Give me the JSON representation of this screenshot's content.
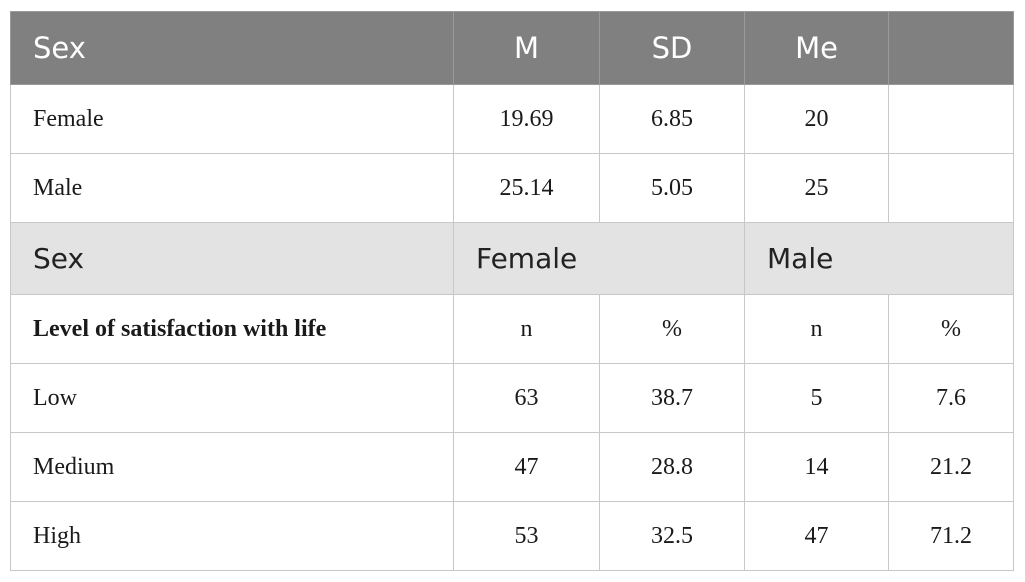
{
  "table": {
    "header1": {
      "col1": "Sex",
      "col2": "M",
      "col3": "SD",
      "col4": "Me",
      "col5": ""
    },
    "stats_rows": [
      {
        "label": "Female",
        "m": "19.69",
        "sd": "6.85",
        "me": "20",
        "extra": ""
      },
      {
        "label": "Male",
        "m": "25.14",
        "sd": "5.05",
        "me": "25",
        "extra": ""
      }
    ],
    "header2": {
      "col1": "Sex",
      "group1": "Female",
      "group2": "Male"
    },
    "subheader": {
      "label": "Level of satisfaction with life",
      "n1": "n",
      "pct1": "%",
      "n2": "n",
      "pct2": "%"
    },
    "level_rows": [
      {
        "label": "Low",
        "n1": "63",
        "pct1": "38.7",
        "n2": "5",
        "pct2": "7.6"
      },
      {
        "label": "Medium",
        "n1": "47",
        "pct1": "28.8",
        "n2": "14",
        "pct2": "21.2"
      },
      {
        "label": "High",
        "n1": "53",
        "pct1": "32.5",
        "n2": "47",
        "pct2": "71.2"
      }
    ]
  }
}
